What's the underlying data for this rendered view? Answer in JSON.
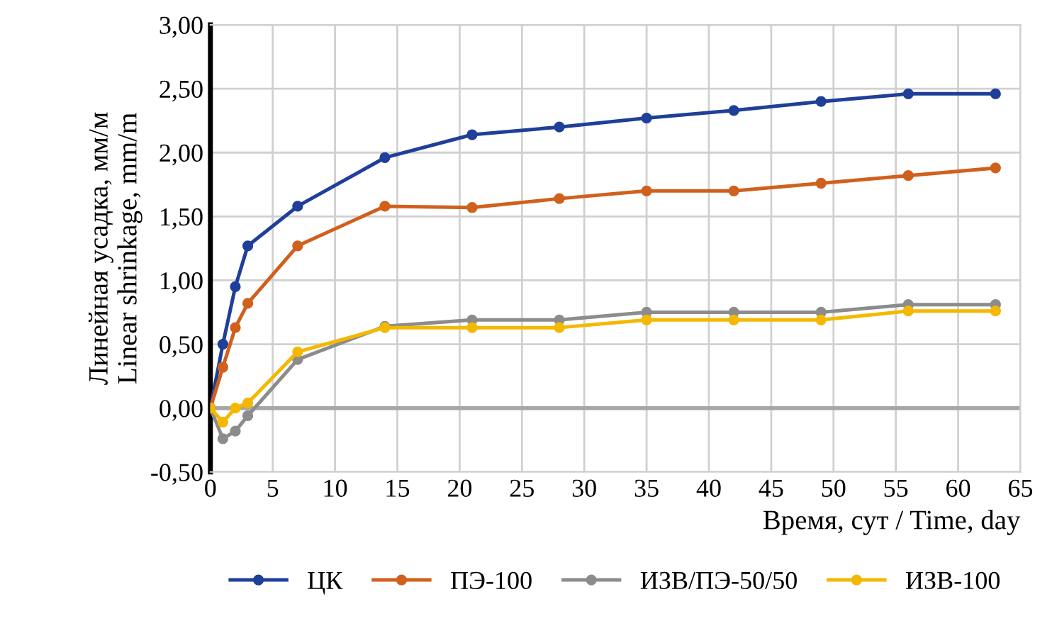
{
  "chart_data": {
    "type": "line",
    "xlabel": "Время, сут / Time, day",
    "ylabel": "Линейная усадка, мм/м\nLinear shrinkage, mm/m",
    "x": [
      0,
      1,
      2,
      3,
      7,
      14,
      21,
      28,
      35,
      42,
      49,
      56,
      63
    ],
    "series": [
      {
        "name": "ЦК",
        "color": "#1f3f99",
        "values": [
          0,
          0.5,
          0.95,
          1.27,
          1.58,
          1.96,
          2.14,
          2.2,
          2.27,
          2.33,
          2.4,
          2.46,
          2.46
        ]
      },
      {
        "name": "ПЭ-100",
        "color": "#d0601c",
        "values": [
          0,
          0.32,
          0.63,
          0.82,
          1.27,
          1.58,
          1.57,
          1.64,
          1.7,
          1.7,
          1.76,
          1.82,
          1.88
        ]
      },
      {
        "name": "ИЗВ/ПЭ-50/50",
        "color": "#8c8c8c",
        "values": [
          0,
          -0.24,
          -0.18,
          -0.06,
          0.38,
          0.64,
          0.69,
          0.69,
          0.75,
          0.75,
          0.75,
          0.81,
          0.81
        ]
      },
      {
        "name": "ИЗВ-100",
        "color": "#f5b800",
        "values": [
          0,
          -0.11,
          0.0,
          0.04,
          0.44,
          0.63,
          0.63,
          0.63,
          0.69,
          0.69,
          0.69,
          0.76,
          0.76
        ]
      }
    ],
    "xlim": [
      0,
      65
    ],
    "xticks": [
      0,
      5,
      10,
      15,
      20,
      25,
      30,
      35,
      40,
      45,
      50,
      55,
      60,
      65
    ],
    "ylim": [
      -0.5,
      3.0
    ],
    "yticks": [
      {
        "value": -0.5,
        "label": "-0,50"
      },
      {
        "value": 0,
        "label": "0,00"
      },
      {
        "value": 0.5,
        "label": "0,50"
      },
      {
        "value": 1.0,
        "label": "1,00"
      },
      {
        "value": 1.5,
        "label": "1,50"
      },
      {
        "value": 2.0,
        "label": "2,00"
      },
      {
        "value": 2.5,
        "label": "2,50"
      },
      {
        "value": 3.0,
        "label": "3,00"
      }
    ],
    "ref_lines": [
      {
        "axis": "y",
        "value": 0,
        "color": "#a6a6a6"
      }
    ],
    "grid": true,
    "legend": "bottom",
    "marker": "circle",
    "line_style": "solid"
  }
}
